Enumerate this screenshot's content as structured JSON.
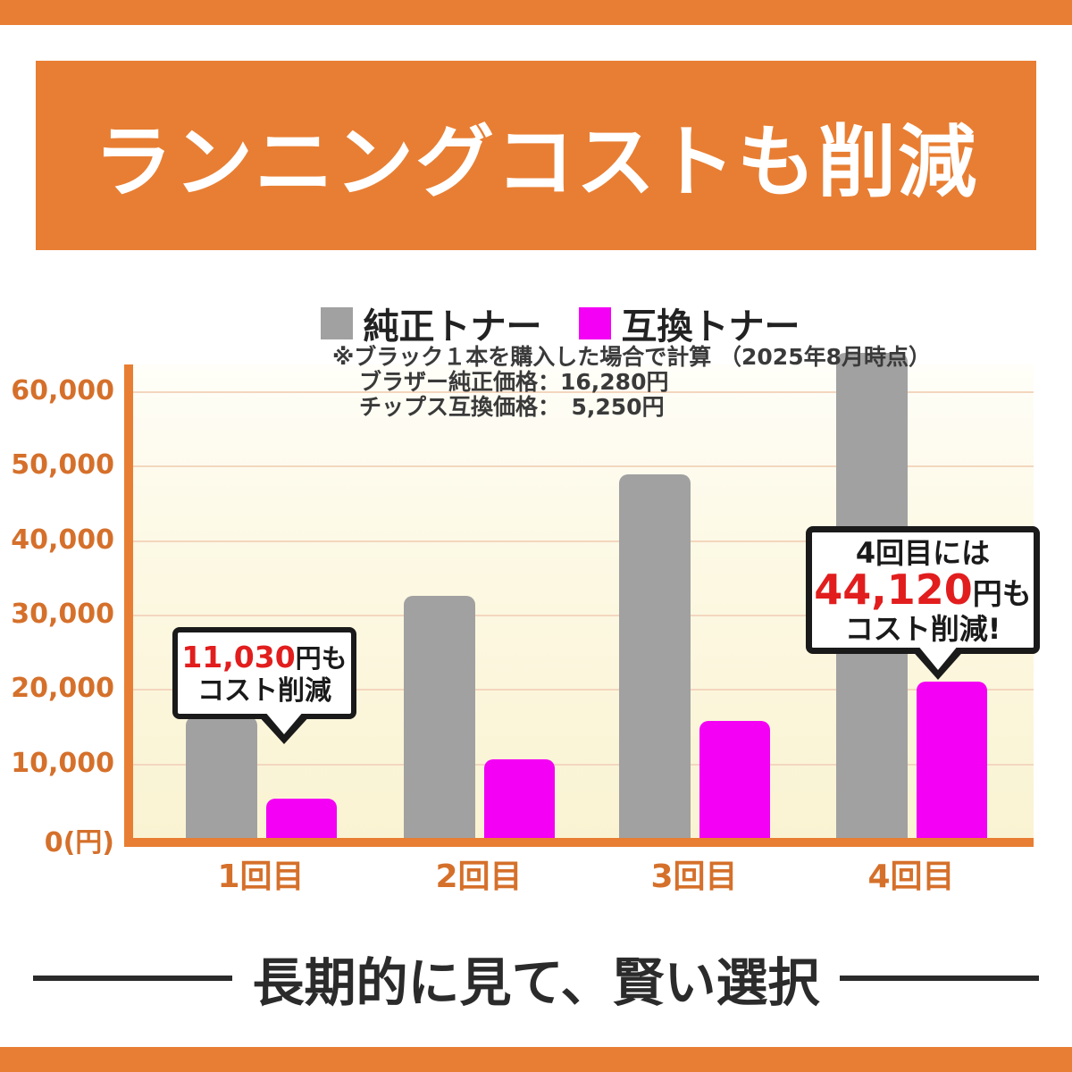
{
  "colors": {
    "orange_accent": "#e87e33",
    "axis_text_orange": "#d5702b",
    "gray_bar": "#a1a1a1",
    "magenta_bar": "#f400f4",
    "red_highlight": "#e21d1d",
    "dark_text": "#2b2b2b",
    "gridline": "#f3d6be",
    "plot_bg": "#faf3d2"
  },
  "header": {
    "title": "ランニングコストも削減"
  },
  "legend": [
    {
      "key": "genuine",
      "label": "純正トナー",
      "color": "#a1a1a1"
    },
    {
      "key": "compatible",
      "label": "互換トナー",
      "color": "#f400f4"
    }
  ],
  "note": {
    "line1": "※ブラック１本を購入した場合で計算 （2025年8月時点）",
    "line2": "ブラザー純正価格：16,280円",
    "line3": "チップス互換価格：　5,250円"
  },
  "chart_data": {
    "type": "bar",
    "categories": [
      "1回目",
      "2回目",
      "3回目",
      "4回目"
    ],
    "series": [
      {
        "key": "genuine",
        "name": "純正トナー",
        "color": "#a1a1a1",
        "values": [
          16280,
          32560,
          48840,
          65120
        ]
      },
      {
        "key": "compatible",
        "name": "互換トナー",
        "color": "#f400f4",
        "values": [
          5250,
          10500,
          15750,
          21000
        ]
      }
    ],
    "title": "",
    "xlabel": "",
    "ylabel": "円",
    "ylim": [
      0,
      65000
    ],
    "yticks": [
      0,
      10000,
      20000,
      30000,
      40000,
      50000,
      60000
    ],
    "ytick_labels": [
      "0(円)",
      "10,000",
      "20,000",
      "30,000",
      "40,000",
      "50,000",
      "60,000"
    ],
    "grid": true,
    "legend_position": "top"
  },
  "callouts": [
    {
      "highlight": "11,030",
      "suffix": "円も",
      "line2": "コスト削減"
    },
    {
      "line1": "4回目には",
      "highlight": "44,120",
      "suffix": "円も",
      "line2": "コスト削減!"
    }
  ],
  "footer": {
    "text": "長期的に見て、賢い選択"
  }
}
